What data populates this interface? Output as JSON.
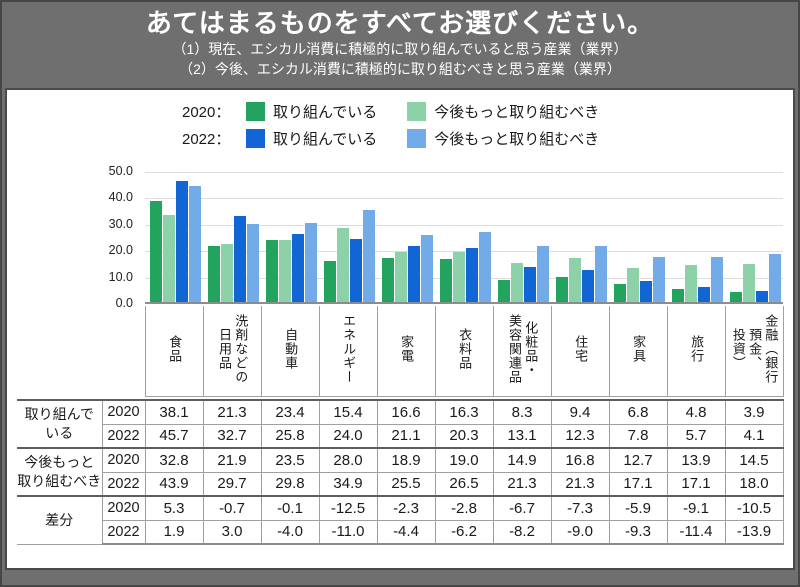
{
  "header": {
    "title": "あてはまるものをすべてお選びください。",
    "subtitle1": "（1）現在、エシカル消費に積極的に取り組んでいると思う産業（業界）",
    "subtitle2": "（2）今後、エシカル消費に積極的に取り組むべきと思う産業（業界）"
  },
  "legend": {
    "rows": [
      {
        "year_label": "2020：",
        "items": [
          {
            "label": "取り組んでいる",
            "color": "#23a45e"
          },
          {
            "label": "今後もっと取り組むべき",
            "color": "#8cd1a7"
          }
        ]
      },
      {
        "year_label": "2022：",
        "items": [
          {
            "label": "取り組んでいる",
            "color": "#1165d4"
          },
          {
            "label": "今後もっと取り組むべき",
            "color": "#73aae8"
          }
        ]
      }
    ]
  },
  "chart_data": {
    "type": "bar",
    "categories": [
      "食品",
      "洗剤などの\n日用品",
      "自動車",
      "エネルギー",
      "家電",
      "衣料品",
      "化粧品・\n美容関連品",
      "住宅",
      "家具",
      "旅行",
      "金融（銀行\n預金、\n投資）"
    ],
    "series": [
      {
        "name": "2020 取り組んでいる",
        "color": "#23a45e",
        "values": [
          38.1,
          21.3,
          23.4,
          15.4,
          16.6,
          16.3,
          8.3,
          9.4,
          6.8,
          4.8,
          3.9
        ]
      },
      {
        "name": "2020 今後もっと取り組むべき",
        "color": "#8cd1a7",
        "values": [
          32.8,
          21.9,
          23.5,
          28.0,
          18.9,
          19.0,
          14.9,
          16.8,
          12.7,
          13.9,
          14.5
        ]
      },
      {
        "name": "2022 取り組んでいる",
        "color": "#1165d4",
        "values": [
          45.7,
          32.7,
          25.8,
          24.0,
          21.1,
          20.3,
          13.1,
          12.3,
          7.8,
          5.7,
          4.1
        ]
      },
      {
        "name": "2022 今後もっと取り組むべき",
        "color": "#73aae8",
        "values": [
          43.9,
          29.7,
          29.8,
          34.9,
          25.5,
          26.5,
          21.3,
          21.3,
          17.1,
          17.1,
          18.0
        ]
      }
    ],
    "ylim": [
      0,
      50
    ],
    "yticks": [
      "50.0",
      "40.0",
      "30.0",
      "20.0",
      "10.0",
      "0.0"
    ],
    "grid": true,
    "legend_position": "top"
  },
  "table": {
    "row_groups": [
      {
        "label": "取り組んで\nいる",
        "rows": [
          {
            "year": "2020",
            "values": [
              38.1,
              21.3,
              23.4,
              15.4,
              16.6,
              16.3,
              8.3,
              9.4,
              6.8,
              4.8,
              3.9
            ]
          },
          {
            "year": "2022",
            "values": [
              45.7,
              32.7,
              25.8,
              24.0,
              21.1,
              20.3,
              13.1,
              12.3,
              7.8,
              5.7,
              4.1
            ]
          }
        ]
      },
      {
        "label": "今後もっと\n取り組むべき",
        "rows": [
          {
            "year": "2020",
            "values": [
              32.8,
              21.9,
              23.5,
              28.0,
              18.9,
              19.0,
              14.9,
              16.8,
              12.7,
              13.9,
              14.5
            ]
          },
          {
            "year": "2022",
            "values": [
              43.9,
              29.7,
              29.8,
              34.9,
              25.5,
              26.5,
              21.3,
              21.3,
              17.1,
              17.1,
              18.0
            ]
          }
        ]
      },
      {
        "label": "差分",
        "rows": [
          {
            "year": "2020",
            "values": [
              5.3,
              -0.7,
              -0.1,
              -12.5,
              -2.3,
              -2.8,
              -6.7,
              -7.3,
              -5.9,
              -9.1,
              -10.5
            ]
          },
          {
            "year": "2022",
            "values": [
              1.9,
              3.0,
              -4.0,
              -11.0,
              -4.4,
              -6.2,
              -8.2,
              -9.0,
              -9.3,
              -11.4,
              -13.9
            ]
          }
        ]
      }
    ]
  }
}
